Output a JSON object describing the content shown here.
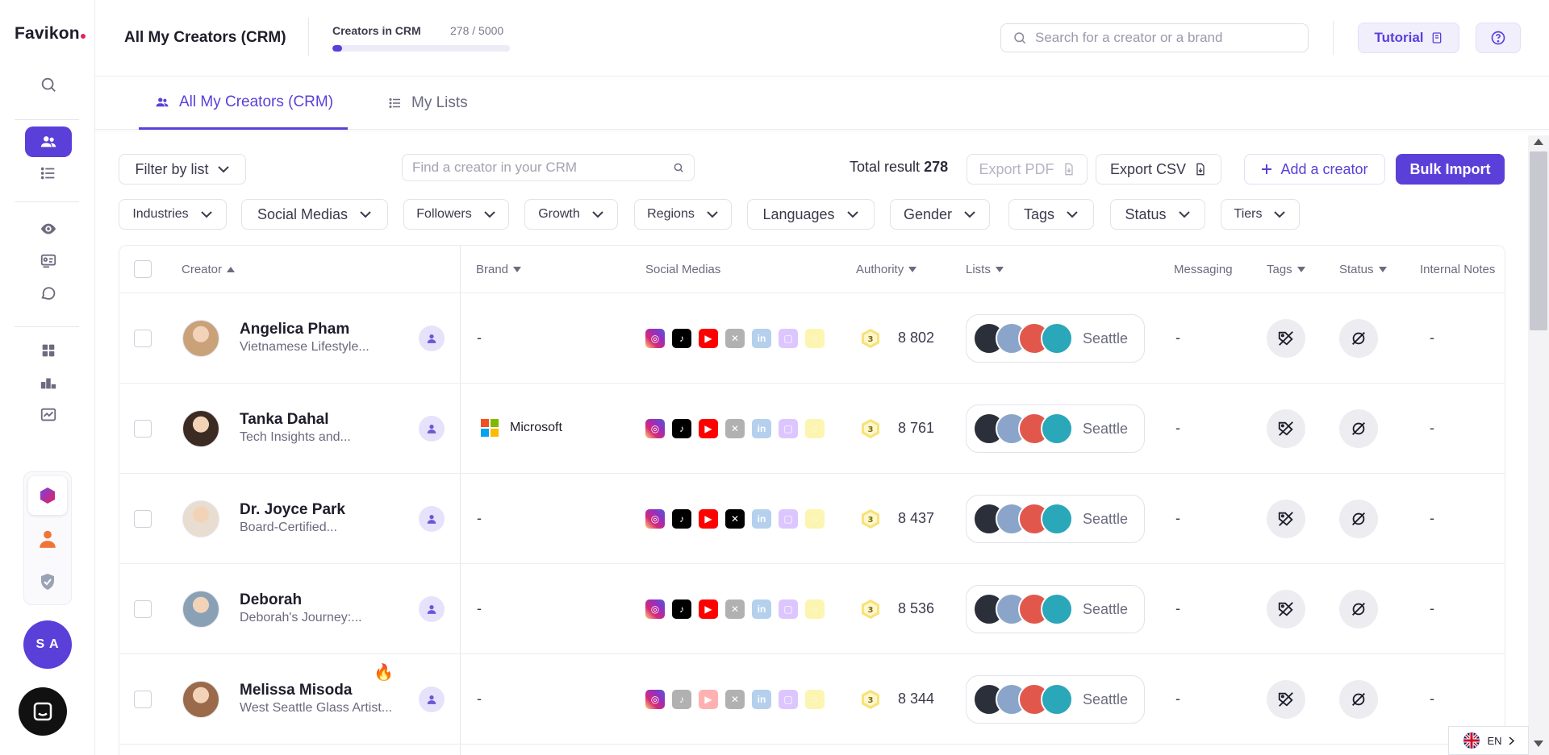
{
  "brand": {
    "logo": "Favikon"
  },
  "header": {
    "title": "All My Creators (CRM)",
    "crm_label": "Creators in CRM",
    "crm_count": "278 / 5000",
    "crm_progress": 0.0556,
    "search_placeholder": "Search for a creator or a brand",
    "tutorial_label": "Tutorial"
  },
  "tabs": [
    {
      "label": "All My Creators (CRM)",
      "active": true
    },
    {
      "label": "My Lists",
      "active": false
    }
  ],
  "toolbar": {
    "filter_by_list": "Filter by list",
    "crm_search_placeholder": "Find a creator in your CRM",
    "total_label": "Total result",
    "total_value": "278",
    "export_pdf": "Export PDF",
    "export_csv": "Export CSV",
    "add_creator": "Add a creator",
    "bulk_import": "Bulk Import"
  },
  "filters": [
    "Industries",
    "Social Medias",
    "Followers",
    "Growth",
    "Regions",
    "Languages",
    "Gender",
    "Tags",
    "Status",
    "Tiers"
  ],
  "columns": {
    "creator": "Creator",
    "brand": "Brand",
    "social_medias": "Social Medias",
    "authority": "Authority",
    "lists": "Lists",
    "messaging": "Messaging",
    "tags": "Tags",
    "status": "Status",
    "internal_notes": "Internal Notes"
  },
  "rows": [
    {
      "name": "Angelica Pham",
      "desc": "Vietnamese Lifestyle...",
      "brand": "-",
      "authority": "8 802",
      "list": "Seattle",
      "messaging": "-",
      "notes": "-",
      "avatar_color": "#c9a27a"
    },
    {
      "name": "Tanka Dahal",
      "desc": "Tech Insights and...",
      "brand": "Microsoft",
      "authority": "8 761",
      "list": "Seattle",
      "messaging": "-",
      "notes": "-",
      "avatar_color": "#3b2b22"
    },
    {
      "name": "Dr. Joyce Park",
      "desc": "Board-Certified...",
      "brand": "-",
      "authority": "8 437",
      "list": "Seattle",
      "messaging": "-",
      "notes": "-",
      "avatar_color": "#e8ddd0"
    },
    {
      "name": "Deborah",
      "desc": "Deborah's Journey:...",
      "brand": "-",
      "authority": "8 536",
      "list": "Seattle",
      "messaging": "-",
      "notes": "-",
      "avatar_color": "#8aa1b5"
    },
    {
      "name": "Melissa Misoda",
      "desc": "West Seattle Glass Artist...",
      "brand": "-",
      "authority": "8 344",
      "list": "Seattle",
      "messaging": "-",
      "notes": "-",
      "avatar_color": "#9a6a4a"
    }
  ],
  "sidebar": {
    "user_initials": "S A"
  },
  "language": "EN",
  "icons": {
    "search": "search-icon",
    "users": "users-icon",
    "list": "list-icon",
    "eye": "eye-icon",
    "id-card": "id-card-icon",
    "chat": "chat-icon",
    "grid": "grid-icon",
    "podium": "podium-icon",
    "analytics": "analytics-icon",
    "hexagon": "hexagon-app-icon",
    "person": "person-app-icon",
    "shield": "shield-icon",
    "fire": "fire-icon"
  },
  "colors": {
    "accent": "#5b3fd9",
    "accent_light": "#f1effc"
  }
}
